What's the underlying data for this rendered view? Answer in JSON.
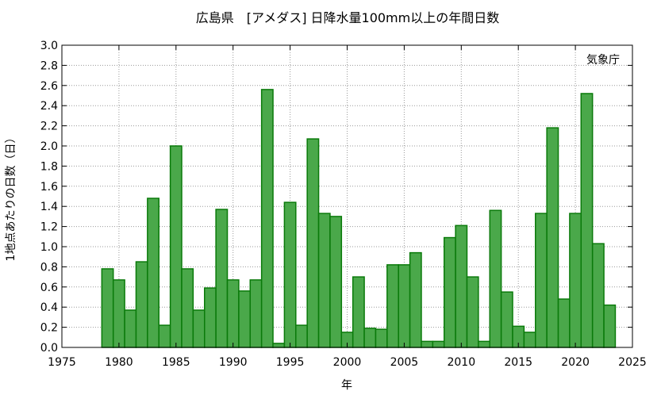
{
  "chart_data": {
    "type": "bar",
    "title": "広島県　[アメダス] 日降水量100mm以上の年間日数",
    "xlabel": "年",
    "ylabel": "1地点あたりの日数（日）",
    "annotation": "気象庁",
    "xlim": [
      1975,
      2025
    ],
    "ylim": [
      0,
      3.0
    ],
    "x_ticks": [
      1975,
      1980,
      1985,
      1990,
      1995,
      2000,
      2005,
      2010,
      2015,
      2020,
      2025
    ],
    "y_ticks": [
      "0.0",
      "0.2",
      "0.4",
      "0.6",
      "0.8",
      "1.0",
      "1.2",
      "1.4",
      "1.6",
      "1.8",
      "2.0",
      "2.2",
      "2.4",
      "2.6",
      "2.8",
      "3.0"
    ],
    "grid": true,
    "x": [
      1979,
      1980,
      1981,
      1982,
      1983,
      1984,
      1985,
      1986,
      1987,
      1988,
      1989,
      1990,
      1991,
      1992,
      1993,
      1994,
      1995,
      1996,
      1997,
      1998,
      1999,
      2000,
      2001,
      2002,
      2003,
      2004,
      2005,
      2006,
      2007,
      2008,
      2009,
      2010,
      2011,
      2012,
      2013,
      2014,
      2015,
      2016,
      2017,
      2018,
      2019,
      2020,
      2021,
      2022,
      2023
    ],
    "values": [
      0.78,
      0.67,
      0.37,
      0.85,
      1.48,
      0.22,
      2.0,
      0.78,
      0.37,
      0.59,
      1.37,
      0.67,
      0.56,
      0.67,
      2.56,
      0.04,
      1.44,
      0.22,
      2.07,
      1.33,
      1.3,
      0.15,
      0.7,
      0.19,
      0.18,
      0.82,
      0.82,
      0.94,
      0.06,
      0.06,
      1.09,
      1.21,
      0.7,
      0.06,
      1.36,
      0.55,
      0.21,
      0.15,
      1.33,
      2.18,
      0.48,
      1.33,
      2.52,
      1.03,
      0.42
    ],
    "colors": {
      "bar_fill": "#4aa84a",
      "bar_edge": "#0a7a0a"
    }
  }
}
